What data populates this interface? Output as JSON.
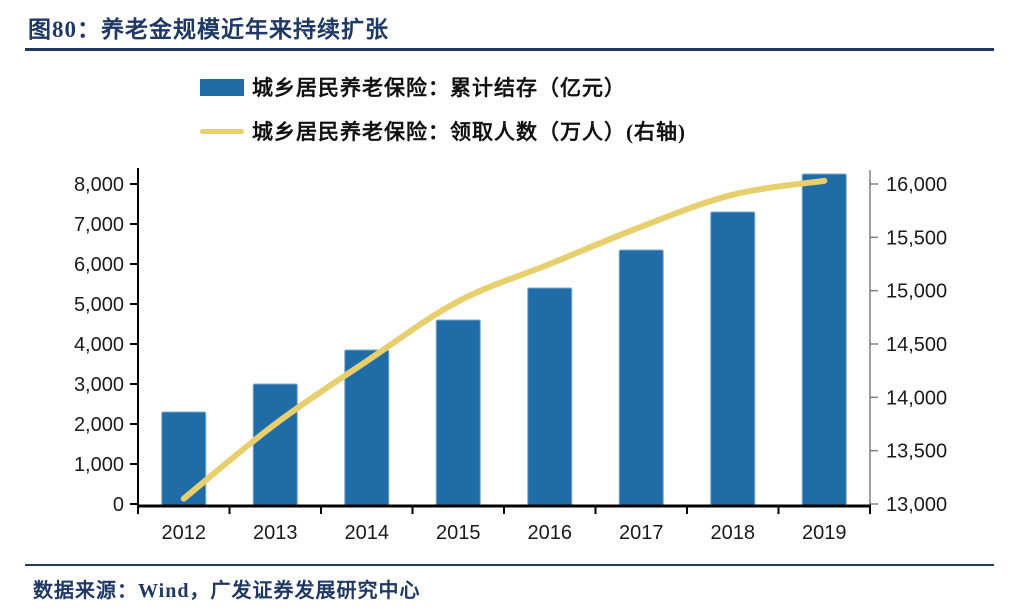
{
  "figure": {
    "title": "图80：养老金规模近年来持续扩张"
  },
  "source": "数据来源：Wind，广发证券发展研究中心",
  "colors": {
    "bar": "#1F6CA6",
    "bar_edge": "#79A8CE",
    "line": "#E8CF6E",
    "navy": "#1F3864",
    "left_axis": "#000000",
    "right_axis": "#808080",
    "tick_label": "#1a1a1a"
  },
  "chart_data": {
    "type": "bar",
    "subtype": "combo-bar-line-dual-axis",
    "categories": [
      "2012",
      "2013",
      "2014",
      "2015",
      "2016",
      "2017",
      "2018",
      "2019"
    ],
    "series": [
      {
        "name": "城乡居民养老保险：累计结存（亿元）",
        "type": "bar",
        "axis": "left",
        "color": "#1F6CA6",
        "values": [
          2300,
          3000,
          3850,
          4600,
          5400,
          6350,
          7300,
          8250
        ]
      },
      {
        "name": "城乡居民养老保险：领取人数（万人）(右轴)",
        "type": "line",
        "axis": "right",
        "color": "#E8CF6E",
        "values": [
          13050,
          13750,
          14340,
          14900,
          15250,
          15600,
          15900,
          16030
        ]
      }
    ],
    "left_axis": {
      "min": 0,
      "max": 8000,
      "step": 1000
    },
    "right_axis": {
      "min": 13000,
      "max": 16000,
      "step": 500
    },
    "legend_position": "top",
    "grid": false,
    "title": "",
    "xlabel": "",
    "ylabel": ""
  }
}
